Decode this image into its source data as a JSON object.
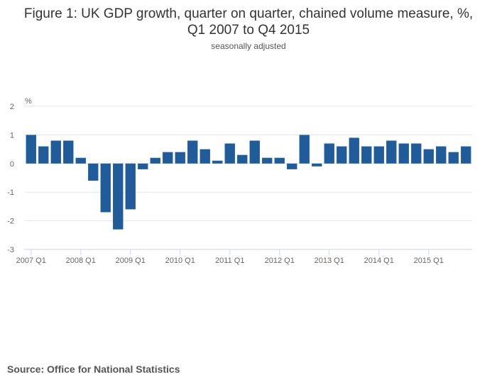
{
  "title_lines": [
    "Figure 1: UK GDP growth, quarter on quarter, chained volume measure, %,",
    "Q1 2007 to Q4 2015"
  ],
  "subtitle": "seasonally adjusted",
  "source": "Source: Office for National Statistics",
  "colors": {
    "bar": "#1f5c99",
    "grid": "#e6e6e6",
    "axis": "#ccd6eb",
    "text": "#666666"
  },
  "chart_data": {
    "type": "bar",
    "title": "Figure 1: UK GDP growth, quarter on quarter, chained volume measure, %, Q1 2007 to Q4 2015",
    "subtitle": "seasonally adjusted",
    "ylabel": "%",
    "xlabel": "",
    "ylim": [
      -3,
      2
    ],
    "yticks": [
      2,
      1,
      0,
      -1,
      -2,
      -3
    ],
    "grid": true,
    "legend": "none",
    "categories": [
      "2007 Q1",
      "2007 Q2",
      "2007 Q3",
      "2007 Q4",
      "2008 Q1",
      "2008 Q2",
      "2008 Q3",
      "2008 Q4",
      "2009 Q1",
      "2009 Q2",
      "2009 Q3",
      "2009 Q4",
      "2010 Q1",
      "2010 Q2",
      "2010 Q3",
      "2010 Q4",
      "2011 Q1",
      "2011 Q2",
      "2011 Q3",
      "2011 Q4",
      "2012 Q1",
      "2012 Q2",
      "2012 Q3",
      "2012 Q4",
      "2013 Q1",
      "2013 Q2",
      "2013 Q3",
      "2013 Q4",
      "2014 Q1",
      "2014 Q2",
      "2014 Q3",
      "2014 Q4",
      "2015 Q1",
      "2015 Q2",
      "2015 Q3",
      "2015 Q4"
    ],
    "x_tick_labels": [
      "2007 Q1",
      "2008 Q1",
      "2009 Q1",
      "2010 Q1",
      "2011 Q1",
      "2012 Q1",
      "2013 Q1",
      "2014 Q1",
      "2015 Q1"
    ],
    "values": [
      1.0,
      0.6,
      0.8,
      0.8,
      0.2,
      -0.6,
      -1.7,
      -2.3,
      -1.6,
      -0.2,
      0.2,
      0.4,
      0.4,
      0.8,
      0.5,
      0.1,
      0.7,
      0.3,
      0.8,
      0.2,
      0.2,
      -0.2,
      1.0,
      -0.1,
      0.7,
      0.6,
      0.9,
      0.6,
      0.6,
      0.8,
      0.7,
      0.7,
      0.5,
      0.6,
      0.4,
      0.6
    ]
  }
}
